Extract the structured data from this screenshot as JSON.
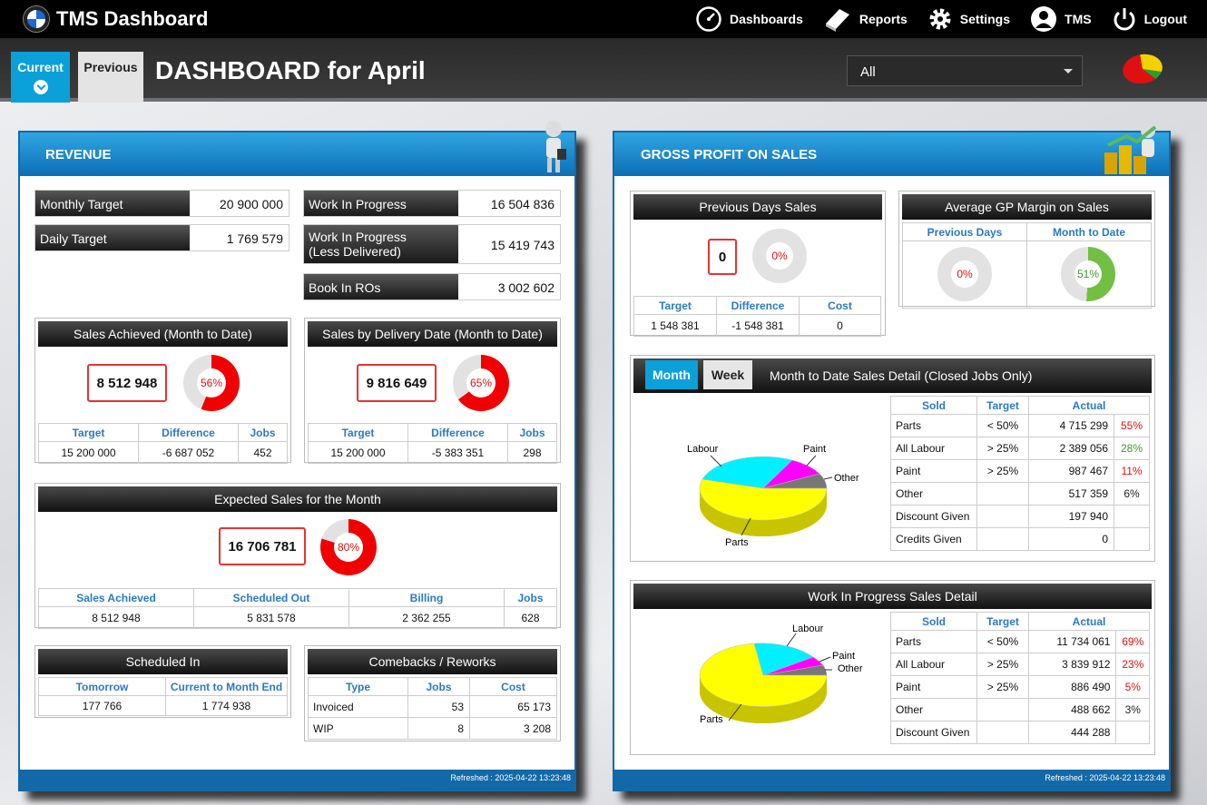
{
  "app": {
    "title": "TMS Dashboard"
  },
  "nav": [
    {
      "label": "Dashboards"
    },
    {
      "label": "Reports"
    },
    {
      "label": "Settings"
    },
    {
      "label": "TMS"
    },
    {
      "label": "Logout"
    }
  ],
  "tabs": {
    "current": "Current",
    "previous": "Previous"
  },
  "page_title": "DASHBOARD for April",
  "filter": {
    "selected": "All"
  },
  "revenue": {
    "title": "REVENUE",
    "monthly_target": {
      "label": "Monthly Target",
      "value": "20 900 000"
    },
    "daily_target": {
      "label": "Daily Target",
      "value": "1 769 579"
    },
    "wip": {
      "label": "Work In Progress",
      "value": "16 504 836"
    },
    "wip_less": {
      "label_line1": "Work In Progress",
      "label_line2": "(Less Delivered)",
      "value": "15 419 743"
    },
    "book_in": {
      "label": "Book In ROs",
      "value": "3 002 602"
    },
    "sales_achieved": {
      "title": "Sales Achieved (Month to Date)",
      "value": "8 512 948",
      "percent": 56,
      "percent_label": "56%",
      "headers": [
        "Target",
        "Difference",
        "Jobs"
      ],
      "row": [
        "15 200 000",
        "-6 687 052",
        "452"
      ]
    },
    "sales_delivery": {
      "title": "Sales by Delivery Date (Month to Date)",
      "value": "9 816 649",
      "percent": 65,
      "percent_label": "65%",
      "headers": [
        "Target",
        "Difference",
        "Jobs"
      ],
      "row": [
        "15 200 000",
        "-5 383 351",
        "298"
      ]
    },
    "expected": {
      "title": "Expected Sales for the Month",
      "value": "16 706 781",
      "percent": 80,
      "percent_label": "80%",
      "headers": [
        "Sales Achieved",
        "Scheduled Out",
        "Billing",
        "Jobs"
      ],
      "row": [
        "8 512 948",
        "5 831 578",
        "2 362 255",
        "628"
      ]
    },
    "scheduled_in": {
      "title": "Scheduled In",
      "headers": [
        "Tomorrow",
        "Current to Month End"
      ],
      "row": [
        "177 766",
        "1 774 938"
      ]
    },
    "comebacks": {
      "title": "Comebacks / Reworks",
      "headers": [
        "Type",
        "Jobs",
        "Cost"
      ],
      "rows": [
        [
          "Invoiced",
          "53",
          "65 173"
        ],
        [
          "WIP",
          "8",
          "3 208"
        ]
      ]
    },
    "refreshed": "Refreshed : 2025-04-22 13:23:48"
  },
  "gross": {
    "title": "GROSS PROFIT ON SALES",
    "prev_days": {
      "title": "Previous Days Sales",
      "value": "0",
      "percent": 0,
      "percent_label": "0%",
      "headers": [
        "Target",
        "Difference",
        "Cost"
      ],
      "row": [
        "1 548 381",
        "-1 548 381",
        "0"
      ]
    },
    "avg_gp": {
      "title": "Average GP Margin on Sales",
      "headers": [
        "Previous Days",
        "Month to Date"
      ],
      "prev_percent": 0,
      "prev_label": "0%",
      "mtd_percent": 51,
      "mtd_label": "51%"
    },
    "mtd_detail": {
      "tab_month": "Month",
      "tab_week": "Week",
      "title": "Month to Date Sales Detail (Closed Jobs Only)",
      "headers": [
        "Sold",
        "Target",
        "Actual"
      ],
      "rows": [
        [
          "Parts",
          "< 50%",
          "4 715 299",
          "55%"
        ],
        [
          "All Labour",
          "> 25%",
          "2 389 056",
          "28%"
        ],
        [
          "Paint",
          "> 25%",
          "987 467",
          "11%"
        ],
        [
          "Other",
          "",
          "517 359",
          "6%"
        ],
        [
          "Discount Given",
          "",
          "197 940",
          ""
        ],
        [
          "Credits Given",
          "",
          "0",
          ""
        ]
      ],
      "pct_colors": [
        "red",
        "green",
        "red",
        "dark"
      ],
      "pie_labels": {
        "labour": "Labour",
        "paint": "Paint",
        "other": "Other",
        "parts": "Parts"
      }
    },
    "wip_detail": {
      "title": "Work In Progress Sales Detail",
      "headers": [
        "Sold",
        "Target",
        "Actual"
      ],
      "rows": [
        [
          "Parts",
          "< 50%",
          "11 734 061",
          "69%"
        ],
        [
          "All Labour",
          "> 25%",
          "3 839 912",
          "23%"
        ],
        [
          "Paint",
          "> 25%",
          "886 490",
          "5%"
        ],
        [
          "Other",
          "",
          "488 662",
          "3%"
        ],
        [
          "Discount Given",
          "",
          "444 288",
          ""
        ]
      ],
      "pct_colors": [
        "red",
        "red",
        "red",
        "dark"
      ],
      "pie_labels": {
        "labour": "Labour",
        "paint": "Paint",
        "other": "Other",
        "parts": "Parts"
      }
    },
    "refreshed": "Refreshed : 2025-04-22 13:23:48"
  },
  "colors": {
    "accent": "#0aa0da",
    "donut_red": "#f00000",
    "donut_green": "#72bf44",
    "donut_bg": "#e2e2e2"
  }
}
